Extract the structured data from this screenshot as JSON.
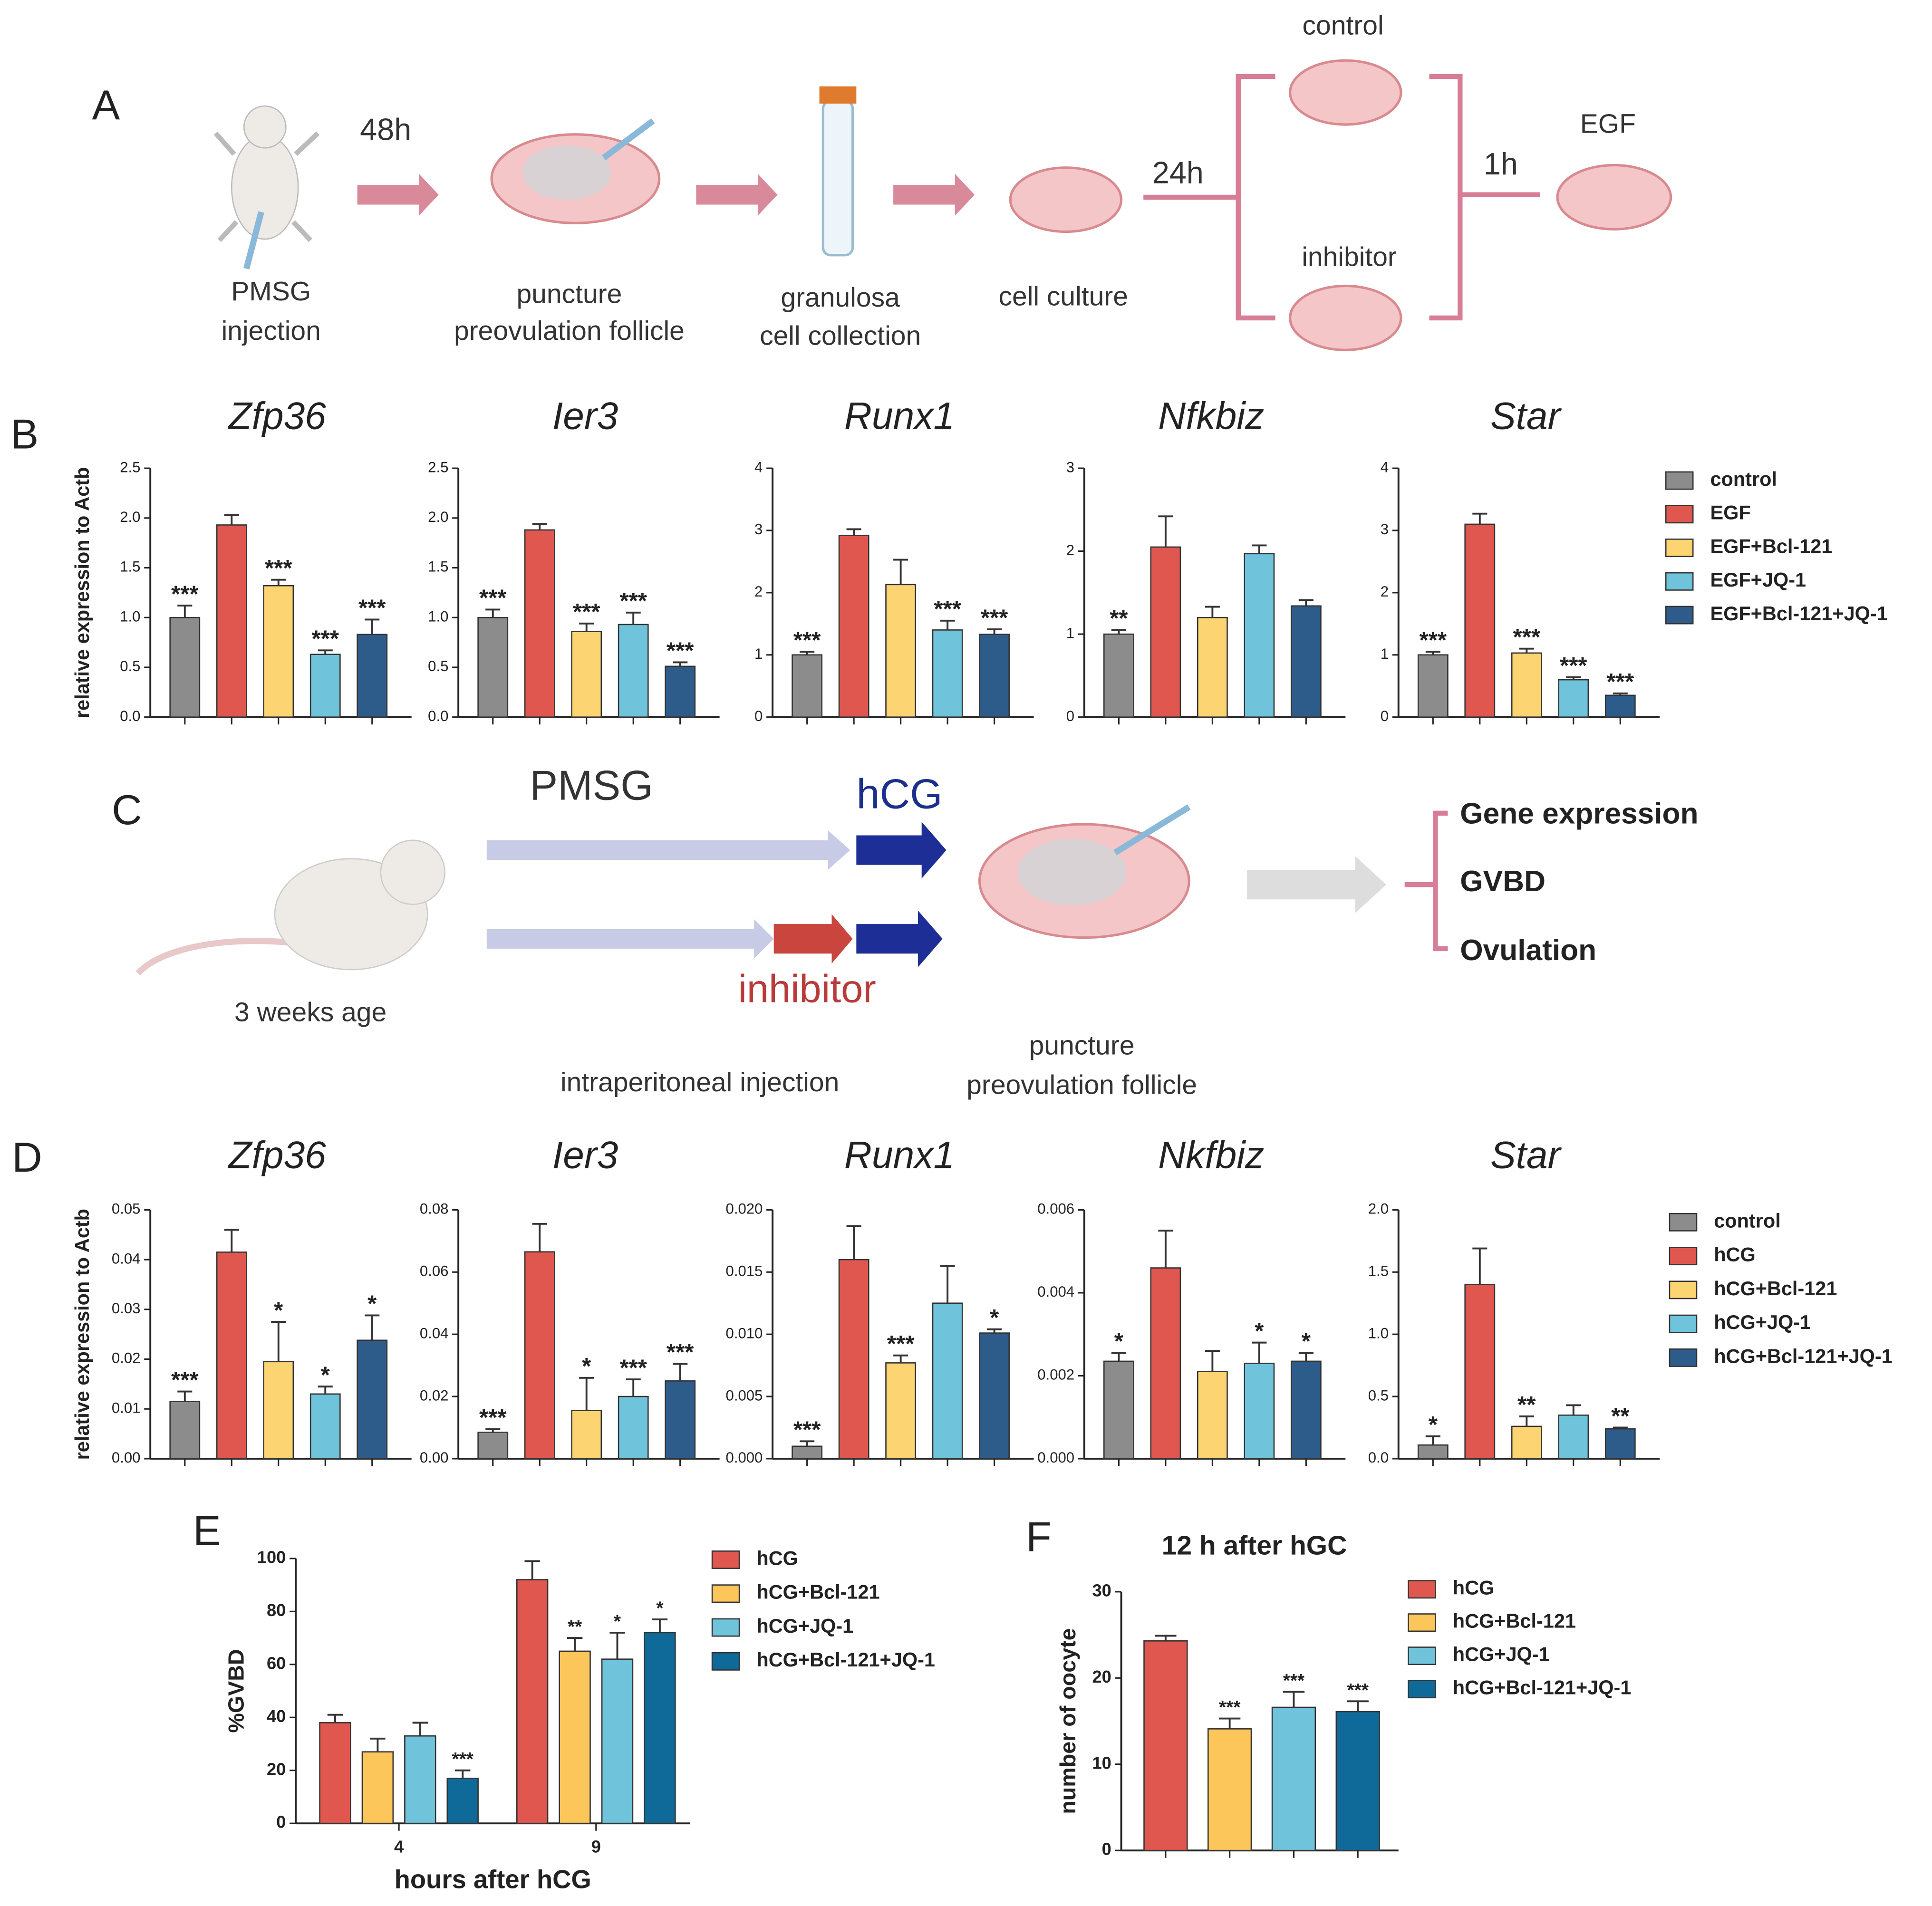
{
  "panel_a": {
    "label": "A",
    "texts": [
      "48h",
      "PMSG",
      "injection",
      "puncture",
      "preovulation follicle",
      "granulosa",
      "cell collection",
      "cell culture",
      "24h",
      "control",
      "inhibitor",
      "1h",
      "EGF"
    ]
  },
  "panel_b": {
    "label": "B"
  },
  "panel_c": {
    "label": "C",
    "texts": [
      "PMSG",
      "hCG",
      "inhibitor",
      "3 weeks age",
      "intraperitoneal injection",
      "puncture",
      "preovulation follicle",
      "Gene expression",
      "GVBD",
      "Ovulation"
    ]
  },
  "panel_d": {
    "label": "D"
  },
  "panel_e": {
    "label": "E"
  },
  "panel_f": {
    "label": "F"
  },
  "chart_data": [
    {
      "type": "bar",
      "title": "Zfp36",
      "ylabel": "relative expression to Actb",
      "ylim": [
        0,
        2.5
      ],
      "yticks": [
        {
          "value": 0,
          "label": "0.0"
        },
        0.5,
        {
          "value": 1,
          "label": "1.0"
        },
        1.5,
        {
          "value": 2,
          "label": "2.0"
        },
        2.5
      ],
      "colors": [
        "#8c8c8c",
        "#e0574f",
        "#fcd472",
        "#6fc3da",
        "#2e5c8a"
      ],
      "values": [
        1.0,
        1.93,
        1.32,
        0.63,
        0.83
      ],
      "errors": [
        0.12,
        0.1,
        0.06,
        0.04,
        0.15
      ],
      "significance": [
        "***",
        null,
        "***",
        "***",
        "***"
      ]
    },
    {
      "type": "bar",
      "title": "Ier3",
      "ylim": [
        0,
        2.5
      ],
      "yticks": [
        {
          "value": 0,
          "label": "0.0"
        },
        0.5,
        {
          "value": 1,
          "label": "1.0"
        },
        1.5,
        {
          "value": 2,
          "label": "2.0"
        },
        2.5
      ],
      "colors": [
        "#8c8c8c",
        "#e0574f",
        "#fcd472",
        "#6fc3da",
        "#2e5c8a"
      ],
      "values": [
        1.0,
        1.88,
        0.86,
        0.93,
        0.51
      ],
      "errors": [
        0.08,
        0.06,
        0.08,
        0.12,
        0.04
      ],
      "significance": [
        "***",
        null,
        "***",
        "***",
        "***"
      ]
    },
    {
      "type": "bar",
      "title": "Runx1",
      "ylim": [
        0,
        4
      ],
      "yticks": [
        0,
        1,
        2,
        3,
        4
      ],
      "colors": [
        "#8c8c8c",
        "#e0574f",
        "#fcd472",
        "#6fc3da",
        "#2e5c8a"
      ],
      "values": [
        1.0,
        2.92,
        2.13,
        1.4,
        1.33
      ],
      "errors": [
        0.05,
        0.1,
        0.4,
        0.15,
        0.08
      ],
      "significance": [
        "***",
        null,
        null,
        "***",
        "***"
      ]
    },
    {
      "type": "bar",
      "title": "Nfkbiz",
      "ylim": [
        0,
        3
      ],
      "yticks": [
        0,
        1,
        2,
        3
      ],
      "colors": [
        "#8c8c8c",
        "#e0574f",
        "#fcd472",
        "#6fc3da",
        "#2e5c8a"
      ],
      "values": [
        1.0,
        2.05,
        1.2,
        1.97,
        1.34
      ],
      "errors": [
        0.05,
        0.37,
        0.13,
        0.1,
        0.07
      ],
      "significance": [
        "**",
        null,
        null,
        null,
        null
      ]
    },
    {
      "type": "bar",
      "title": "Star",
      "ylim": [
        0,
        4
      ],
      "yticks": [
        0,
        1,
        2,
        3,
        4
      ],
      "colors": [
        "#8c8c8c",
        "#e0574f",
        "#fcd472",
        "#6fc3da",
        "#2e5c8a"
      ],
      "values": [
        1.0,
        3.1,
        1.03,
        0.6,
        0.35
      ],
      "errors": [
        0.05,
        0.17,
        0.07,
        0.04,
        0.03
      ],
      "significance": [
        "***",
        null,
        "***",
        "***",
        "***"
      ],
      "legend": [
        "control",
        "EGF",
        "EGF+Bcl-121",
        "EGF+JQ-1",
        "EGF+Bcl-121+JQ-1"
      ]
    },
    {
      "type": "bar",
      "title": "Zfp36",
      "ylabel": "relative expression to Actb",
      "ylim": [
        0,
        0.05
      ],
      "yticks": [
        {
          "value": 0,
          "label": "0.00"
        },
        0.01,
        0.02,
        0.03,
        0.04,
        0.05
      ],
      "colors": [
        "#8c8c8c",
        "#e0574f",
        "#fcd472",
        "#6fc3da",
        "#2e5c8a"
      ],
      "values": [
        0.0115,
        0.0415,
        0.0195,
        0.013,
        0.0238
      ],
      "errors": [
        0.002,
        0.0045,
        0.008,
        0.0015,
        0.005
      ],
      "significance": [
        "***",
        null,
        "*",
        "*",
        "*"
      ]
    },
    {
      "type": "bar",
      "title": "Ier3",
      "ylim": [
        0,
        0.08
      ],
      "yticks": [
        {
          "value": 0,
          "label": "0.00"
        },
        0.02,
        0.04,
        0.06,
        0.08
      ],
      "colors": [
        "#8c8c8c",
        "#e0574f",
        "#fcd472",
        "#6fc3da",
        "#2e5c8a"
      ],
      "values": [
        0.0085,
        0.0665,
        0.0155,
        0.02,
        0.025
      ],
      "errors": [
        0.001,
        0.009,
        0.0105,
        0.0055,
        0.0055
      ],
      "significance": [
        "***",
        null,
        "*",
        "***",
        "***"
      ]
    },
    {
      "type": "bar",
      "title": "Runx1",
      "ylim": [
        0,
        0.02
      ],
      "yticks": [
        {
          "value": 0,
          "label": "0.000"
        },
        0.005,
        {
          "value": 0.01,
          "label": "0.010"
        },
        0.015,
        {
          "value": 0.02,
          "label": "0.020"
        }
      ],
      "colors": [
        "#8c8c8c",
        "#e0574f",
        "#fcd472",
        "#6fc3da",
        "#2e5c8a"
      ],
      "values": [
        0.001,
        0.016,
        0.0077,
        0.0125,
        0.0101
      ],
      "errors": [
        0.0004,
        0.0027,
        0.0006,
        0.003,
        0.0003
      ],
      "significance": [
        "***",
        null,
        "***",
        null,
        "*"
      ]
    },
    {
      "type": "bar",
      "title": "Nkfbiz",
      "ylim": [
        0,
        0.006
      ],
      "yticks": [
        {
          "value": 0,
          "label": "0.000"
        },
        0.002,
        0.004,
        0.006
      ],
      "colors": [
        "#8c8c8c",
        "#e0574f",
        "#fcd472",
        "#6fc3da",
        "#2e5c8a"
      ],
      "values": [
        0.00235,
        0.0046,
        0.0021,
        0.0023,
        0.00235
      ],
      "errors": [
        0.0002,
        0.0009,
        0.0005,
        0.0005,
        0.0002
      ],
      "significance": [
        "*",
        null,
        null,
        "*",
        "*"
      ]
    },
    {
      "type": "bar",
      "title": "Star",
      "ylim": [
        0,
        2
      ],
      "yticks": [
        {
          "value": 0,
          "label": "0.0"
        },
        0.5,
        {
          "value": 1,
          "label": "1.0"
        },
        1.5,
        {
          "value": 2,
          "label": "2.0"
        }
      ],
      "colors": [
        "#8c8c8c",
        "#e0574f",
        "#fcd472",
        "#6fc3da",
        "#2e5c8a"
      ],
      "values": [
        0.11,
        1.4,
        0.26,
        0.35,
        0.24
      ],
      "errors": [
        0.07,
        0.29,
        0.08,
        0.08,
        0.01
      ],
      "significance": [
        "*",
        null,
        "**",
        null,
        "**"
      ],
      "legend": [
        "control",
        "hCG",
        "hCG+Bcl-121",
        "hCG+JQ-1",
        "hCG+Bcl-121+JQ-1"
      ]
    },
    {
      "type": "grouped_bar",
      "ylabel": "%GVBD",
      "xlabel": "hours after hCG",
      "categories": [
        "4",
        "9"
      ],
      "ylim": [
        0,
        100
      ],
      "yticks": [
        0,
        20,
        40,
        60,
        80,
        100
      ],
      "series": [
        {
          "name": "hCG",
          "color": "#e0574f",
          "values": [
            38,
            92
          ],
          "errors": [
            3,
            7
          ],
          "significance": [
            null,
            null
          ]
        },
        {
          "name": "hCG+Bcl-121",
          "color": "#fcc65a",
          "values": [
            27,
            65
          ],
          "errors": [
            5,
            5
          ],
          "significance": [
            null,
            "**"
          ]
        },
        {
          "name": "hCG+JQ-1",
          "color": "#6fc3da",
          "values": [
            33,
            62
          ],
          "errors": [
            5,
            10
          ],
          "significance": [
            null,
            "*"
          ]
        },
        {
          "name": "hCG+Bcl-121+JQ-1",
          "color": "#0f6a99",
          "values": [
            17,
            72
          ],
          "errors": [
            3,
            5
          ],
          "significance": [
            "***",
            "*"
          ]
        }
      ]
    },
    {
      "type": "grouped_bar",
      "title": "12 h after hGC",
      "ylabel": "number of oocyte",
      "ylim": [
        0,
        30
      ],
      "yticks": [
        0,
        10,
        20,
        30
      ],
      "series": [
        {
          "name": "hCG",
          "color": "#e0574f",
          "values": [
            24.3
          ],
          "errors": [
            0.6
          ],
          "significance": [
            null
          ]
        },
        {
          "name": "hCG+Bcl-121",
          "color": "#fcc65a",
          "values": [
            14.1
          ],
          "errors": [
            1.2
          ],
          "significance": [
            "***"
          ]
        },
        {
          "name": "hCG+JQ-1",
          "color": "#6fc3da",
          "values": [
            16.6
          ],
          "errors": [
            1.8
          ],
          "significance": [
            "***"
          ]
        },
        {
          "name": "hCG+Bcl-121+JQ-1",
          "color": "#0f6a99",
          "values": [
            16.1
          ],
          "errors": [
            1.2
          ],
          "significance": [
            "***"
          ]
        }
      ]
    }
  ]
}
